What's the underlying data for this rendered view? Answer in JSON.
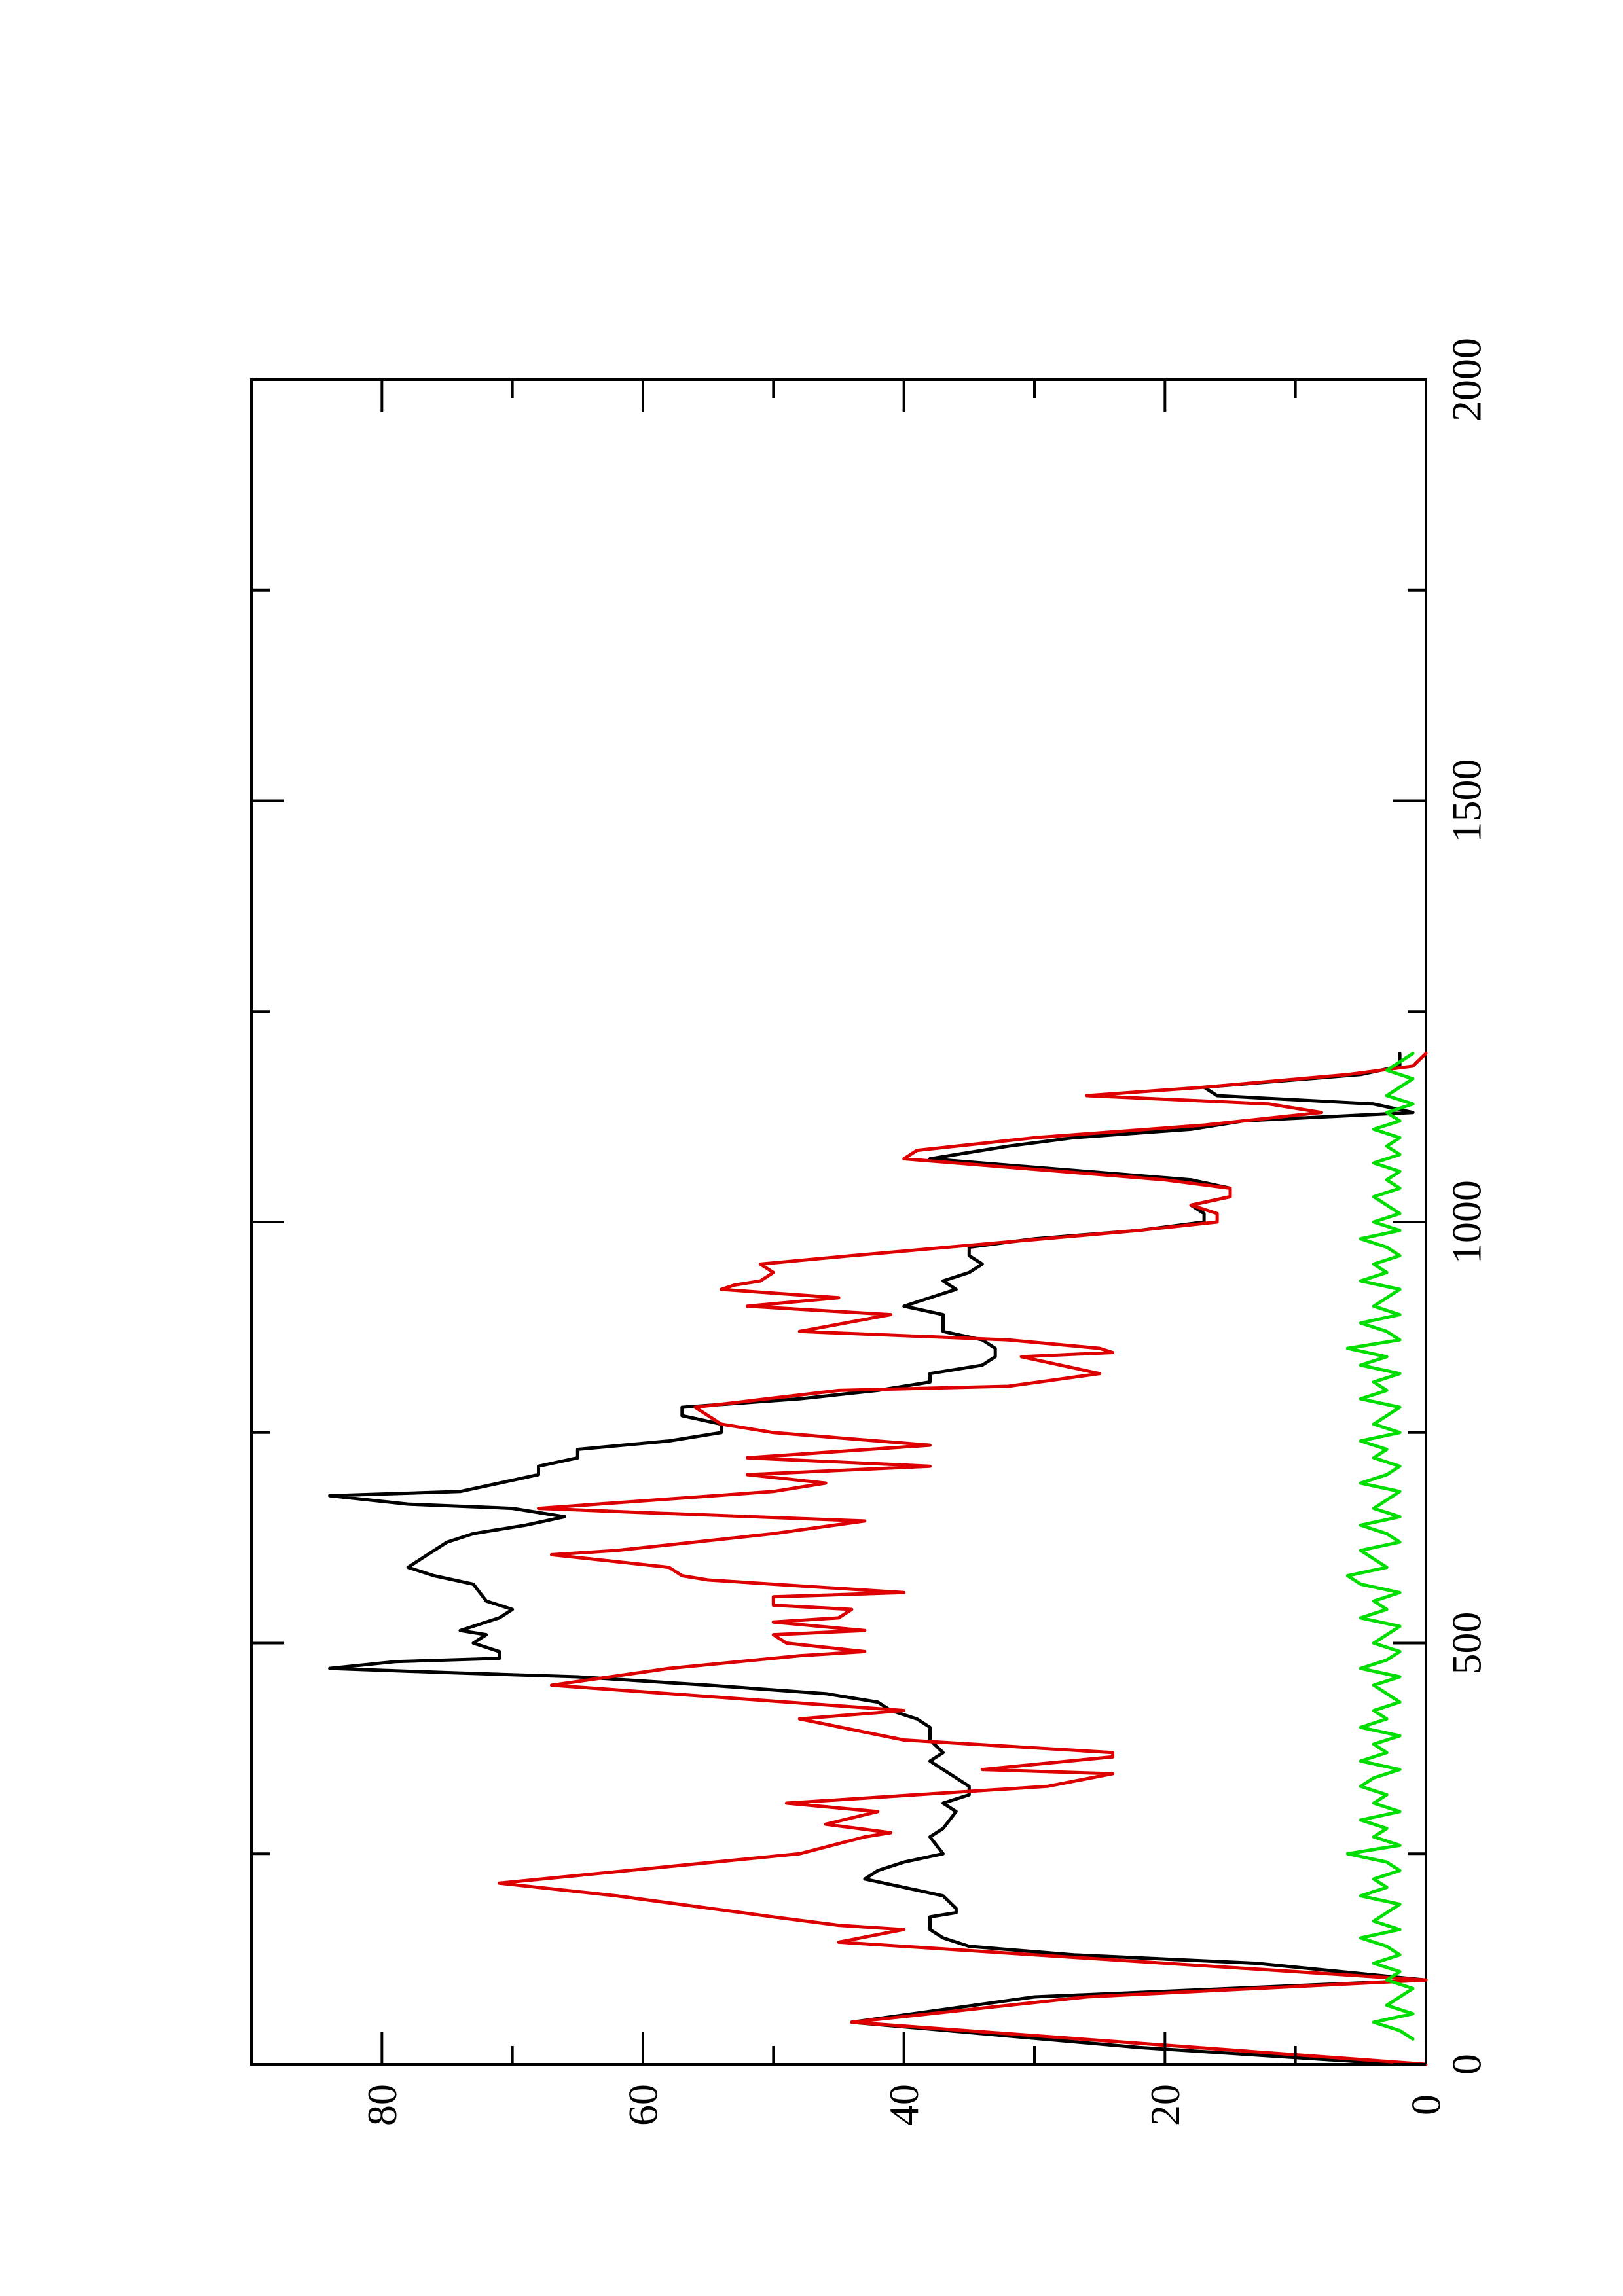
{
  "chart_data": {
    "type": "line",
    "orientation": "rotated-90-clockwise",
    "title": "",
    "xlabel": "",
    "ylabel": "",
    "xlim": [
      0,
      2000
    ],
    "ylim": [
      0,
      90
    ],
    "x_ticks": [
      0,
      500,
      1000,
      1500,
      2000
    ],
    "y_ticks": [
      0,
      20,
      40,
      60,
      80
    ],
    "x_tick_labels": [
      "0",
      "500",
      "1000",
      "1500",
      "2000"
    ],
    "y_tick_labels": [
      "0",
      "20",
      "40",
      "60",
      "80"
    ],
    "grid": false,
    "legend": "none",
    "series": [
      {
        "color": "#000000",
        "x": [
          0,
          20,
          50,
          80,
          100,
          120,
          130,
          140,
          150,
          160,
          175,
          180,
          185,
          200,
          210,
          220,
          230,
          240,
          250,
          270,
          280,
          300,
          310,
          320,
          330,
          340,
          350,
          360,
          370,
          385,
          400,
          410,
          420,
          430,
          440,
          450,
          460,
          465,
          470,
          478,
          482,
          490,
          500,
          510,
          515,
          525,
          530,
          540,
          550,
          570,
          580,
          590,
          600,
          610,
          620,
          630,
          640,
          650,
          660,
          665,
          675,
          680,
          690,
          700,
          710,
          720,
          730,
          740,
          750,
          760,
          770,
          780,
          790,
          800,
          810,
          820,
          830,
          840,
          850,
          860,
          870,
          880,
          890,
          900,
          910,
          920,
          930,
          940,
          950,
          960,
          970,
          980,
          990,
          1000,
          1010,
          1020,
          1030,
          1040,
          1050,
          1060,
          1075,
          1080,
          1090,
          1100,
          1110,
          1120,
          1130,
          1140,
          1150,
          1160,
          1175,
          1185,
          1200
        ],
        "y": [
          2,
          22,
          44,
          30,
          0,
          13,
          27,
          35,
          37,
          38,
          38,
          36,
          36,
          37,
          40,
          43,
          42,
          40,
          37,
          38,
          37,
          36,
          37,
          35,
          35,
          36,
          37,
          38,
          37,
          38,
          38,
          39,
          41,
          42,
          46,
          55,
          65,
          75,
          84,
          79,
          71,
          71,
          73,
          72,
          74,
          72,
          71,
          70,
          72,
          73,
          76,
          78,
          77,
          76,
          75,
          73,
          69,
          66,
          70,
          78,
          84,
          74,
          71,
          68,
          68,
          65,
          65,
          58,
          54,
          54,
          57,
          57,
          48,
          42,
          38,
          38,
          34,
          33,
          33,
          34,
          37,
          37,
          37,
          40,
          38,
          36,
          37,
          35,
          34,
          35,
          35,
          30,
          22,
          17,
          17,
          18,
          15,
          15,
          18,
          26,
          38,
          36,
          32,
          27,
          18,
          14,
          1,
          4,
          16,
          17,
          5,
          2,
          2
        ]
      },
      {
        "color": "#dd0000",
        "x": [
          0,
          50,
          80,
          100,
          145,
          160,
          165,
          175,
          200,
          215,
          250,
          270,
          275,
          285,
          300,
          310,
          330,
          345,
          350,
          365,
          370,
          385,
          410,
          420,
          440,
          450,
          470,
          485,
          490,
          500,
          510,
          515,
          525,
          530,
          540,
          545,
          555,
          560,
          575,
          580,
          590,
          605,
          610,
          630,
          645,
          655,
          660,
          680,
          690,
          700,
          710,
          720,
          735,
          750,
          760,
          780,
          800,
          805,
          820,
          840,
          845,
          850,
          860,
          870,
          890,
          900,
          910,
          920,
          925,
          930,
          940,
          950,
          960,
          975,
          990,
          1000,
          1010,
          1020,
          1030,
          1040,
          1050,
          1060,
          1075,
          1085,
          1100,
          1115,
          1130,
          1140,
          1150,
          1160,
          1175,
          1185,
          1200
        ],
        "y": [
          0,
          44,
          26,
          0,
          45,
          40,
          45,
          50,
          62,
          71,
          48,
          43,
          41,
          46,
          42,
          49,
          29,
          24,
          34,
          24,
          24,
          40,
          48,
          40,
          58,
          67,
          58,
          48,
          43,
          49,
          50,
          43,
          50,
          45,
          44,
          50,
          50,
          40,
          55,
          57,
          58,
          67,
          62,
          50,
          43,
          60,
          68,
          50,
          46,
          52,
          38,
          52,
          38,
          50,
          54,
          56,
          45,
          32,
          25,
          31,
          24,
          25,
          32,
          48,
          41,
          52,
          45,
          54,
          53,
          51,
          50,
          51,
          44,
          33,
          22,
          16,
          16,
          18,
          15,
          15,
          20,
          28,
          40,
          39,
          30,
          17,
          8,
          12,
          26,
          17,
          6,
          1,
          0
        ]
      },
      {
        "color": "#00dd00",
        "x": [
          30,
          40,
          50,
          60,
          70,
          80,
          90,
          100,
          110,
          120,
          130,
          140,
          150,
          160,
          170,
          180,
          190,
          200,
          210,
          220,
          230,
          240,
          250,
          260,
          270,
          280,
          290,
          300,
          310,
          320,
          330,
          340,
          350,
          360,
          370,
          380,
          390,
          400,
          410,
          420,
          430,
          440,
          450,
          460,
          470,
          480,
          490,
          500,
          510,
          520,
          530,
          540,
          550,
          560,
          570,
          580,
          590,
          600,
          610,
          620,
          630,
          640,
          650,
          660,
          670,
          680,
          690,
          700,
          710,
          720,
          730,
          740,
          750,
          760,
          770,
          780,
          790,
          800,
          810,
          820,
          830,
          840,
          850,
          860,
          870,
          880,
          890,
          900,
          910,
          920,
          930,
          940,
          950,
          960,
          970,
          980,
          990,
          1000,
          1010,
          1020,
          1030,
          1040,
          1050,
          1060,
          1070,
          1080,
          1090,
          1100,
          1110,
          1120,
          1130,
          1140,
          1150,
          1160,
          1170,
          1180,
          1190,
          1200
        ],
        "y": [
          1,
          2,
          4,
          1,
          3,
          2,
          1,
          3,
          2,
          4,
          2,
          3,
          5,
          2,
          4,
          3,
          2,
          5,
          3,
          4,
          2,
          3,
          6,
          2,
          4,
          3,
          5,
          2,
          4,
          3,
          5,
          4,
          2,
          5,
          3,
          4,
          2,
          5,
          3,
          4,
          2,
          3,
          4,
          2,
          5,
          3,
          2,
          4,
          3,
          2,
          5,
          3,
          4,
          2,
          5,
          6,
          3,
          4,
          5,
          2,
          3,
          5,
          2,
          4,
          3,
          2,
          5,
          3,
          2,
          4,
          3,
          5,
          2,
          4,
          3,
          2,
          5,
          3,
          4,
          2,
          5,
          3,
          6,
          2,
          3,
          5,
          2,
          4,
          3,
          2,
          5,
          3,
          4,
          2,
          3,
          5,
          2,
          4,
          2,
          3,
          4,
          2,
          3,
          2,
          4,
          2,
          3,
          2,
          4,
          2,
          3,
          1,
          3,
          2,
          1,
          3,
          2,
          1
        ]
      }
    ]
  }
}
